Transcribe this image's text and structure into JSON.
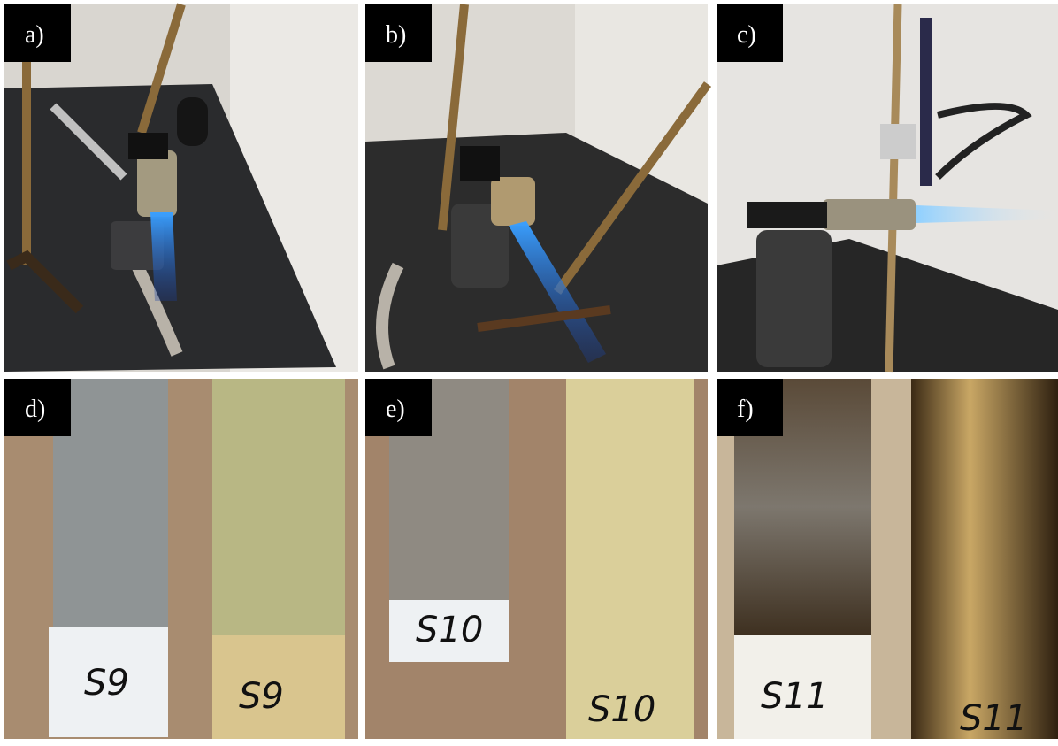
{
  "panels": [
    {
      "label": "a)"
    },
    {
      "label": "b)"
    },
    {
      "label": "c)"
    },
    {
      "label": "d)",
      "samples": [
        "S9",
        "S9"
      ]
    },
    {
      "label": "e)",
      "samples": [
        "S10",
        "S10"
      ]
    },
    {
      "label": "f)",
      "samples": [
        "S11",
        "S11"
      ]
    }
  ]
}
